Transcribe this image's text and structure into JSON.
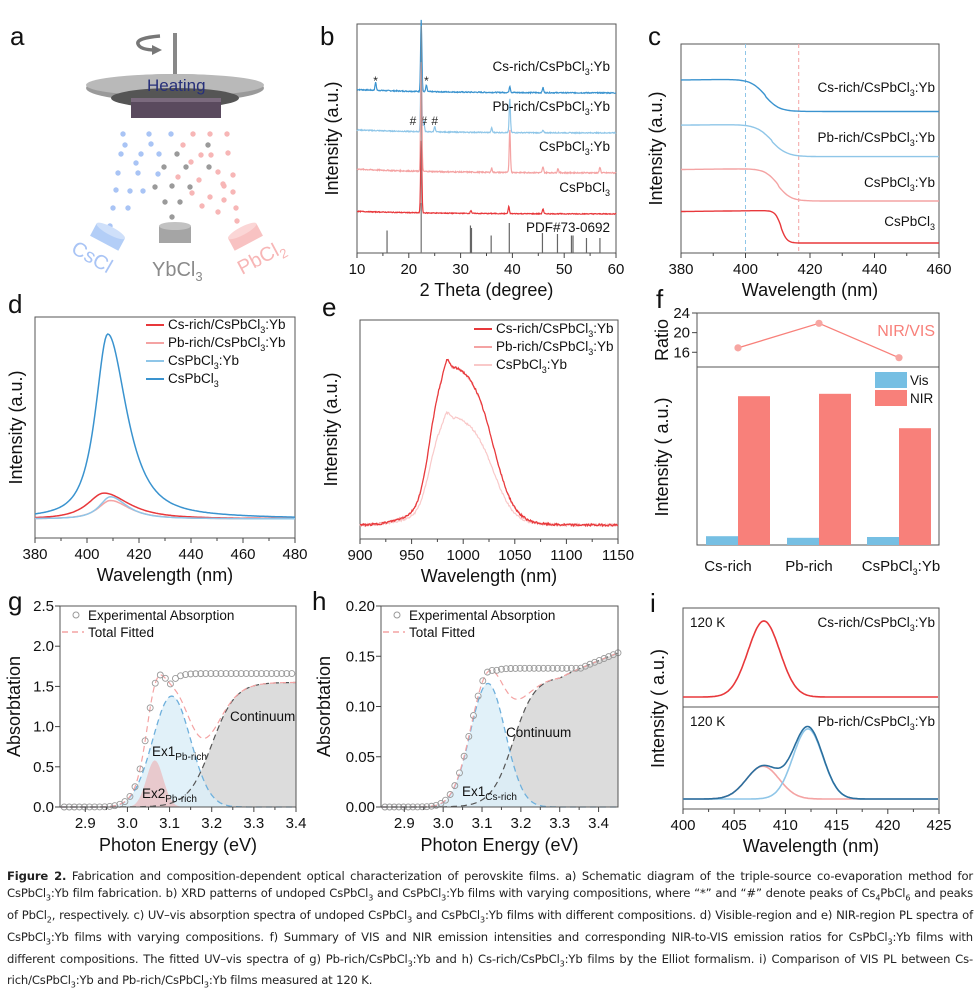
{
  "figure": {
    "caption_lead": "Figure 2.",
    "caption_text": "Fabrication and composition-dependent optical characterization of perovskite films. a) Schematic diagram of the triple-source co-evaporation method for CsPbCl3:Yb film fabrication. b) XRD patterns of undoped CsPbCl3 and CsPbCl3:Yb films with varying compositions, where “*” and “#” denote peaks of Cs4PbCl6 and peaks of PbCl2, respectively. c) UV–vis absorption spectra of undoped CsPbCl3 and CsPbCl3:Yb films with different compositions. d) Visible-region and e) NIR-region PL spectra of CsPbCl3:Yb films with varying compositions. f) Summary of VIS and NIR emission intensities and corresponding NIR-to-VIS emission ratios for CsPbCl3:Yb films with different compositions. The fitted UV–vis spectra of g) Pb-rich/CsPbCl3:Yb and h) Cs-rich/CsPbCl3:Yb films by the Elliot formalism. i) Comparison of VIS PL between Cs-rich/CsPbCl3:Yb and Pb-rich/CsPbCl3:Yb films measured at 120 K."
  },
  "panel_a": {
    "label": "a",
    "heating_label": "Heating",
    "sources": [
      {
        "name": "CsCl",
        "color": "#a9c4f5"
      },
      {
        "name": "YbCl3",
        "color": "#9a9a9a"
      },
      {
        "name": "PbCl2",
        "color": "#f7b6b6"
      }
    ]
  },
  "colors": {
    "red": "#e8383b",
    "pink": "#f4a3a3",
    "light_pink": "#f9c9c9",
    "blue": "#3a93cf",
    "light_blue": "#8fc6e8",
    "dark_blue": "#2b6f9e",
    "vis_bar": "#76bfe3",
    "nir_bar": "#f8807a",
    "continuum_fill": "#dcdcdc",
    "ex1_fill": "#dceef8",
    "ex2_fill": "#e9c4c8"
  },
  "chart_data": [
    {
      "id": "b",
      "label": "b",
      "type": "line",
      "title": "",
      "xlabel": "2 Theta (degree)",
      "ylabel": "Intensity (a.u.)",
      "xlim": [
        10,
        60
      ],
      "xticks": [
        10,
        20,
        30,
        40,
        50,
        60
      ],
      "series": [
        {
          "name": "Cs-rich/CsPbCl3:Yb",
          "color": "#3a93cf",
          "offset": 4,
          "peaks": [
            [
              13.6,
              0.06
            ],
            [
              22.4,
              0.55
            ],
            [
              23.4,
              0.05
            ],
            [
              39.5,
              0.05
            ],
            [
              45.9,
              0.04
            ]
          ],
          "markers": [
            {
              "x": 13.6,
              "symbol": "*"
            },
            {
              "x": 23.4,
              "symbol": "*"
            }
          ]
        },
        {
          "name": "Pb-rich/CsPbCl3:Yb",
          "color": "#8fc6e8",
          "offset": 3,
          "peaks": [
            [
              22.4,
              0.6
            ],
            [
              22.9,
              0.1
            ],
            [
              25.0,
              0.05
            ],
            [
              36.0,
              0.04
            ],
            [
              39.5,
              0.3
            ],
            [
              45.9,
              0.02
            ]
          ],
          "markers": [
            {
              "x": 20.8,
              "symbol": "#"
            },
            {
              "x": 22.9,
              "symbol": "#"
            },
            {
              "x": 25.0,
              "symbol": "#"
            }
          ]
        },
        {
          "name": "CsPbCl3:Yb",
          "color": "#f4a3a3",
          "offset": 2,
          "peaks": [
            [
              22.4,
              0.75
            ],
            [
              36.0,
              0.03
            ],
            [
              39.5,
              0.3
            ],
            [
              45.9,
              0.04
            ],
            [
              48.8,
              0.03
            ],
            [
              56.9,
              0.04
            ]
          ],
          "markers": []
        },
        {
          "name": "CsPbCl3",
          "color": "#e8383b",
          "offset": 1,
          "peaks": [
            [
              22.4,
              0.72
            ],
            [
              32.0,
              0.03
            ],
            [
              39.3,
              0.07
            ],
            [
              45.9,
              0.05
            ]
          ],
          "markers": []
        }
      ],
      "reference": {
        "name": "PDF#73-0692",
        "sticks": [
          [
            15.8,
            0.45
          ],
          [
            22.4,
            1.0
          ],
          [
            31.9,
            0.55
          ],
          [
            32.1,
            0.5
          ],
          [
            35.9,
            0.35
          ],
          [
            39.4,
            0.6
          ],
          [
            45.8,
            0.4
          ],
          [
            48.7,
            0.38
          ],
          [
            51.4,
            0.35
          ],
          [
            51.7,
            0.35
          ],
          [
            54.3,
            0.3
          ],
          [
            56.9,
            0.3
          ]
        ]
      }
    },
    {
      "id": "c",
      "label": "c",
      "type": "line",
      "xlabel": "Wavelength (nm)",
      "ylabel": "Intensity (a.u.)",
      "xlim": [
        380,
        460
      ],
      "xticks": [
        380,
        400,
        420,
        440,
        460
      ],
      "reference_lines": [
        {
          "x": 400,
          "color": "#8fc6e8"
        },
        {
          "x": 416.5,
          "color": "#f4a3a3"
        }
      ],
      "series": [
        {
          "name": "Cs-rich/CsPbCl3:Yb",
          "color": "#3a93cf",
          "edge": 406,
          "width": 2.2,
          "high": 0.99,
          "low": 0.22,
          "base": 3
        },
        {
          "name": "Pb-rich/CsPbCl3:Yb",
          "color": "#8fc6e8",
          "edge": 408,
          "width": 2.4,
          "high": 0.97,
          "low": 0.05,
          "base": 2
        },
        {
          "name": "CsPbCl3:Yb",
          "color": "#f4a3a3",
          "edge": 410,
          "width": 2.0,
          "high": 1.0,
          "low": 0.0,
          "base": 1
        },
        {
          "name": "CsPbCl3",
          "color": "#e8383b",
          "edge": 411,
          "width": 0.9,
          "high": 0.92,
          "low": 0.0,
          "base": 0
        }
      ]
    },
    {
      "id": "d",
      "label": "d",
      "type": "line",
      "xlabel": "Wavelength (nm)",
      "ylabel": "Intensity (a.u.)",
      "xlim": [
        380,
        480
      ],
      "xticks": [
        380,
        400,
        420,
        440,
        460,
        480
      ],
      "legend": "top-right",
      "series": [
        {
          "name": "Cs-rich/CsPbCl3:Yb",
          "color": "#e8383b",
          "peak_x": 406.5,
          "peak_y": 0.14,
          "width": 12
        },
        {
          "name": "Pb-rich/CsPbCl3:Yb",
          "color": "#f4a3a3",
          "peak_x": 409,
          "peak_y": 0.1,
          "width": 9
        },
        {
          "name": "CsPbCl3:Yb",
          "color": "#8fc6e8",
          "peak_x": 409,
          "peak_y": 0.12,
          "width": 8
        },
        {
          "name": "CsPbCl3",
          "color": "#3a93cf",
          "peak_x": 408,
          "peak_y": 1.0,
          "width": 9
        }
      ]
    },
    {
      "id": "e",
      "label": "e",
      "type": "line",
      "xlabel": "Wavelength (nm)",
      "ylabel": "Intensity (a.u.)",
      "xlim": [
        900,
        1150
      ],
      "xticks": [
        900,
        950,
        1000,
        1050,
        1100,
        1150
      ],
      "legend": "top-right",
      "series": [
        {
          "name": "Cs-rich/CsPbCl3:Yb",
          "color": "#e8383b",
          "peak_y": 1.0
        },
        {
          "name": "Pb-rich/CsPbCl3:Yb",
          "color": "#f4a3a3",
          "peak_y": 1.0
        },
        {
          "name": "CsPbCl3:Yb",
          "color": "#f9c9c9",
          "peak_y": 0.68
        }
      ]
    },
    {
      "id": "f",
      "label": "f",
      "type": "bar",
      "categories": [
        "Cs-rich",
        "Pb-rich",
        "CsPbCl3:Yb"
      ],
      "ratio": {
        "ylabel": "Ratio",
        "yticks": [
          16,
          20,
          24
        ],
        "ylim": [
          13,
          24
        ],
        "values": [
          16.9,
          21.9,
          14.9
        ],
        "label": "NIR/VIS",
        "color": "#f8807a"
      },
      "bars": {
        "ylabel": "Intensity ( a.u.)",
        "legend": "top-right",
        "series": [
          {
            "name": "Vis",
            "color": "#76bfe3",
            "values": [
              0.055,
              0.045,
              0.05
            ]
          },
          {
            "name": "NIR",
            "color": "#f8807a",
            "values": [
              0.93,
              0.945,
              0.73
            ]
          }
        ]
      }
    },
    {
      "id": "g",
      "label": "g",
      "type": "area",
      "xlabel": "Photon Energy (eV)",
      "ylabel": "Absorbtation",
      "xlim": [
        2.84,
        3.4
      ],
      "ylim": [
        0,
        2.5
      ],
      "xticks": [
        2.9,
        3.0,
        3.1,
        3.2,
        3.3,
        3.4
      ],
      "yticks": [
        0.0,
        0.5,
        1.0,
        1.5,
        2.0,
        2.5
      ],
      "legend": [
        "Experimental Absorption",
        "Total Fitted"
      ],
      "components": [
        {
          "name": "Ex1",
          "sub": "Pb-rich",
          "center": 3.105,
          "amp": 1.38,
          "width": 0.045
        },
        {
          "name": "Ex2",
          "sub": "Pb-rich",
          "center": 3.065,
          "amp": 0.58,
          "width": 0.02
        },
        {
          "name": "Continuum",
          "edge": 3.2,
          "amp": 1.55
        }
      ],
      "experimental_plateau": 1.66
    },
    {
      "id": "h",
      "label": "h",
      "type": "area",
      "xlabel": "Photon Energy (eV)",
      "ylabel": "Absorbtation",
      "xlim": [
        2.84,
        3.45
      ],
      "ylim": [
        0,
        0.2
      ],
      "xticks": [
        2.9,
        3.0,
        3.1,
        3.2,
        3.3,
        3.4
      ],
      "yticks": [
        0.0,
        0.05,
        0.1,
        0.15,
        0.2
      ],
      "legend": [
        "Experimental Absorption",
        "Total Fitted"
      ],
      "components": [
        {
          "name": "Ex1",
          "sub": "Cs-rich",
          "center": 3.115,
          "amp": 0.123,
          "width": 0.045
        },
        {
          "name": "Continuum",
          "edge": 3.18,
          "amp": 0.13
        }
      ],
      "experimental_plateau": 0.138
    },
    {
      "id": "i",
      "label": "i",
      "type": "line",
      "xlabel": "Wavelength (nm)",
      "ylabel": "Intensity ( a.u.)",
      "xlim": [
        400,
        425
      ],
      "xticks": [
        400,
        405,
        410,
        415,
        420,
        425
      ],
      "panels": [
        {
          "temp": "120 K",
          "name": "Cs-rich/CsPbCl3:Yb",
          "curves": [
            {
              "color": "#e8383b",
              "peaks": [
                [
                  407.9,
                  1.0,
                  1.55
                ]
              ]
            }
          ]
        },
        {
          "temp": "120 K",
          "name": "Pb-rich/CsPbCl3:Yb",
          "curves": [
            {
              "color": "#2b6f9e",
              "peaks": [
                [
                  407.8,
                  0.42,
                  1.6
                ],
                [
                  412.2,
                  0.92,
                  1.45
                ]
              ]
            },
            {
              "color": "#8fc6e8",
              "peaks": [
                [
                  412.2,
                  0.9,
                  1.45
                ]
              ]
            },
            {
              "color": "#f4a3a3",
              "peaks": [
                [
                  407.8,
                  0.42,
                  1.6
                ]
              ]
            }
          ]
        }
      ]
    }
  ]
}
